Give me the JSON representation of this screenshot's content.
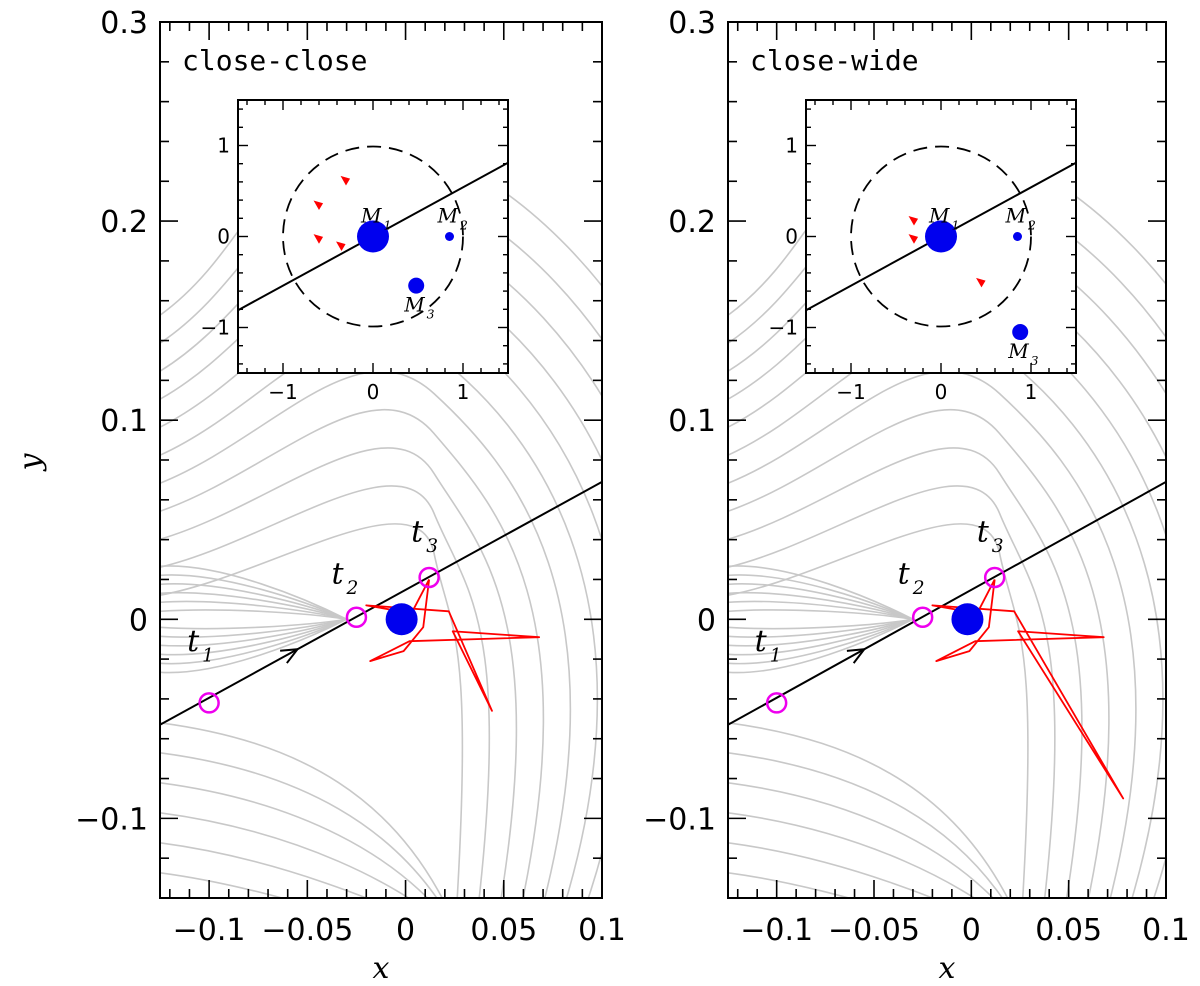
{
  "colors": {
    "contour": "#c8c8c8",
    "caustic": "#ff0000",
    "lens": "#0000ee",
    "image_marker": "#ee00ee",
    "axis": "#000000"
  },
  "chart_data": [
    {
      "type": "line",
      "panel_label": "close-close",
      "xlabel": "x",
      "ylabel": "y",
      "xlim": [
        -0.125,
        0.1
      ],
      "ylim": [
        -0.14,
        0.3
      ],
      "xticks": [
        -0.1,
        -0.05,
        0,
        0.05,
        0.1
      ],
      "xtick_labels": [
        "−0.1",
        "−0.05",
        "0",
        "0.05",
        "0.1"
      ],
      "yticks": [
        -0.1,
        0,
        0.1,
        0.2,
        0.3
      ],
      "ytick_labels": [
        "−0.1",
        "0",
        "0.1",
        "0.2",
        "0.3"
      ],
      "source_trajectory": {
        "x0": -0.125,
        "y0": -0.053,
        "x1": 0.1,
        "y1": 0.069,
        "arrow_at_x": -0.055
      },
      "image_positions": [
        {
          "label": "t",
          "sub": "1",
          "x": -0.1,
          "y": -0.042
        },
        {
          "label": "t",
          "sub": "2",
          "x": -0.025,
          "y": 0.001
        },
        {
          "label": "t",
          "sub": "3",
          "x": 0.012,
          "y": 0.021
        }
      ],
      "primary_lens": {
        "x": -0.002,
        "y": 0.0
      },
      "caustic": [
        [
          0.012,
          0.02
        ],
        [
          0.009,
          -0.004
        ],
        [
          -0.001,
          -0.016
        ],
        [
          -0.018,
          -0.021
        ],
        [
          0.002,
          -0.011
        ],
        [
          0.068,
          -0.009
        ],
        [
          0.024,
          -0.006
        ],
        [
          0.044,
          -0.046
        ],
        [
          0.022,
          0.004
        ],
        [
          -0.02,
          0.007
        ],
        [
          0.003,
          0.003
        ],
        [
          0.012,
          0.02
        ]
      ],
      "inset": {
        "xlim": [
          -1.5,
          1.5
        ],
        "ylim": [
          -1.5,
          1.5
        ],
        "ticks": [
          -1,
          0,
          1
        ],
        "tick_labels": [
          "−1",
          "0",
          "1"
        ],
        "circle_radius": 1.0,
        "trajectory": {
          "x0": -1.5,
          "y0": -0.81,
          "x1": 1.5,
          "y1": 0.81
        },
        "masses": [
          {
            "label": "M",
            "sub": "1",
            "x": 0.0,
            "y": 0.0,
            "size": "large"
          },
          {
            "label": "M",
            "sub": "2",
            "x": 0.85,
            "y": 0.0,
            "size": "small"
          },
          {
            "label": "M",
            "sub": "3",
            "x": 0.48,
            "y": -0.54,
            "size": "medium"
          }
        ],
        "caustic_fragments": [
          [
            -0.6,
            -0.02
          ],
          [
            -0.6,
            0.35
          ],
          [
            -0.3,
            0.62
          ],
          [
            -0.35,
            -0.1
          ]
        ]
      }
    },
    {
      "type": "line",
      "panel_label": "close-wide",
      "xlabel": "x",
      "ylabel": "",
      "xlim": [
        -0.125,
        0.1
      ],
      "ylim": [
        -0.14,
        0.3
      ],
      "xticks": [
        -0.1,
        -0.05,
        0,
        0.05,
        0.1
      ],
      "xtick_labels": [
        "−0.1",
        "−0.05",
        "0",
        "0.05",
        "0.1"
      ],
      "yticks": [
        -0.1,
        0,
        0.1,
        0.2,
        0.3
      ],
      "ytick_labels": [
        "−0.1",
        "0",
        "0.1",
        "0.2",
        "0.3"
      ],
      "source_trajectory": {
        "x0": -0.125,
        "y0": -0.053,
        "x1": 0.1,
        "y1": 0.069,
        "arrow_at_x": -0.055
      },
      "image_positions": [
        {
          "label": "t",
          "sub": "1",
          "x": -0.1,
          "y": -0.042
        },
        {
          "label": "t",
          "sub": "2",
          "x": -0.025,
          "y": 0.001
        },
        {
          "label": "t",
          "sub": "3",
          "x": 0.012,
          "y": 0.021
        }
      ],
      "primary_lens": {
        "x": -0.002,
        "y": 0.0
      },
      "caustic": [
        [
          0.012,
          0.02
        ],
        [
          0.009,
          -0.004
        ],
        [
          -0.001,
          -0.016
        ],
        [
          -0.018,
          -0.021
        ],
        [
          0.002,
          -0.011
        ],
        [
          0.068,
          -0.009
        ],
        [
          0.024,
          -0.006
        ],
        [
          0.078,
          -0.09
        ],
        [
          0.022,
          0.004
        ],
        [
          -0.02,
          0.007
        ],
        [
          0.003,
          0.003
        ],
        [
          0.012,
          0.02
        ]
      ],
      "inset": {
        "xlim": [
          -1.5,
          1.5
        ],
        "ylim": [
          -1.5,
          1.5
        ],
        "ticks": [
          -1,
          0,
          1
        ],
        "tick_labels": [
          "−1",
          "0",
          "1"
        ],
        "circle_radius": 1.0,
        "trajectory": {
          "x0": -1.5,
          "y0": -0.81,
          "x1": 1.5,
          "y1": 0.81
        },
        "masses": [
          {
            "label": "M",
            "sub": "1",
            "x": 0.0,
            "y": 0.0,
            "size": "large"
          },
          {
            "label": "M",
            "sub": "2",
            "x": 0.85,
            "y": 0.0,
            "size": "small"
          },
          {
            "label": "M",
            "sub": "3",
            "x": 0.88,
            "y": -1.05,
            "size": "medium"
          }
        ],
        "caustic_fragments": [
          [
            -0.3,
            -0.02
          ],
          [
            -0.3,
            0.18
          ],
          [
            0.45,
            -0.5
          ]
        ]
      }
    }
  ]
}
